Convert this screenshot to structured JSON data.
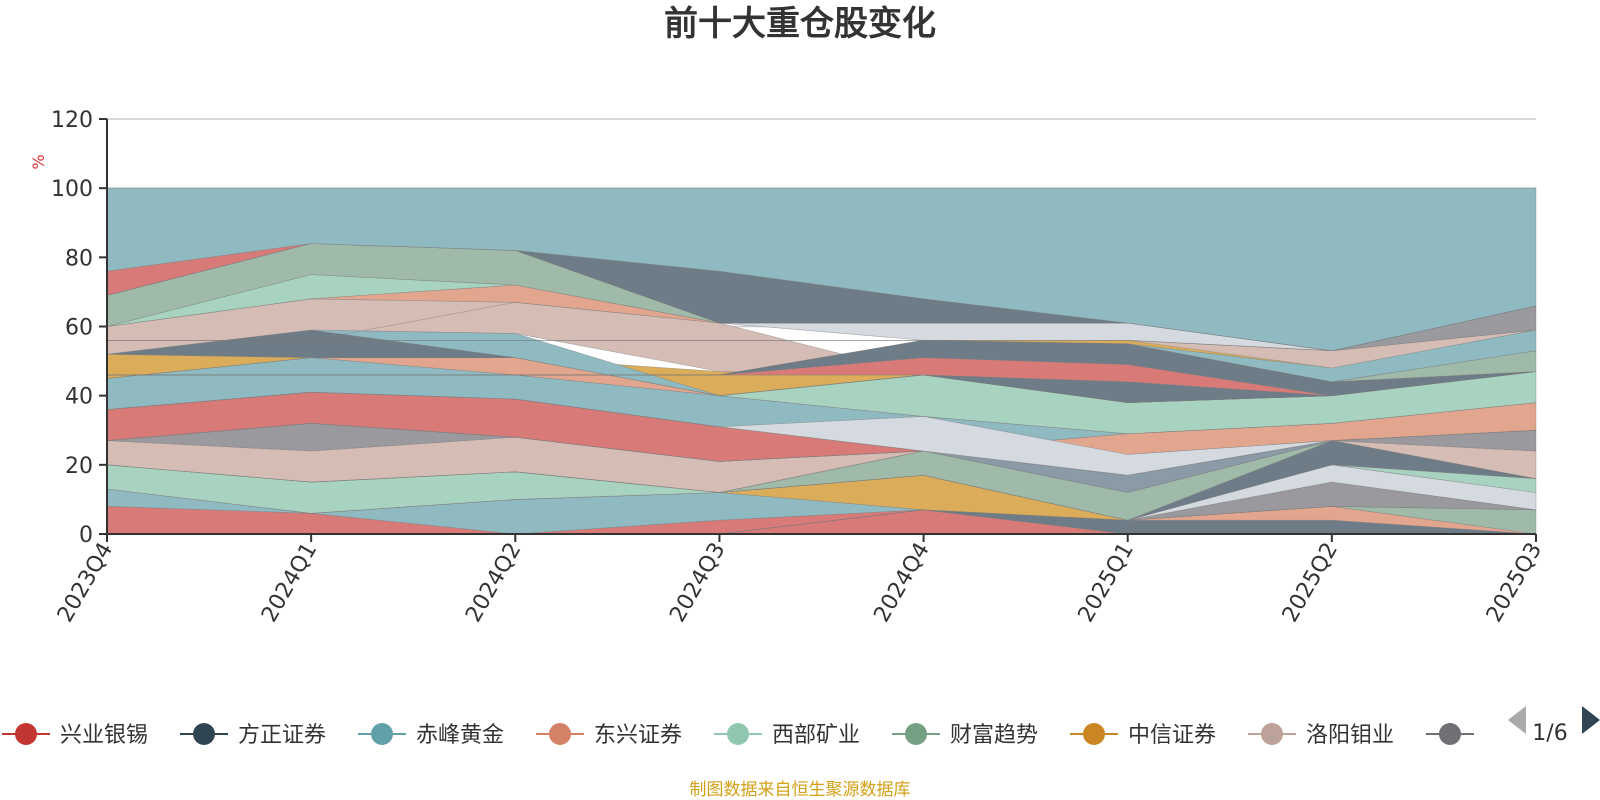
{
  "source_note": "制图数据来自恒生聚源数据库",
  "legend_page": "1/6",
  "chart_data": {
    "type": "area",
    "title": "前十大重仓股变化",
    "ylabel": "%",
    "ylim": [
      0,
      120
    ],
    "yticks": [
      0,
      20,
      40,
      60,
      80,
      100,
      120
    ],
    "grid": true,
    "legend_position": "bottom",
    "categories": [
      "2023Q4",
      "2024Q1",
      "2024Q2",
      "2024Q3",
      "2024Q4",
      "2025Q1",
      "2025Q2",
      "2025Q3"
    ],
    "legend": [
      {
        "name": "兴业银锡",
        "color": "#c23531"
      },
      {
        "name": "方正证券",
        "color": "#2f4554"
      },
      {
        "name": "赤峰黄金",
        "color": "#61a0a8"
      },
      {
        "name": "东兴证券",
        "color": "#d48265"
      },
      {
        "name": "西部矿业",
        "color": "#91c7ae"
      },
      {
        "name": "财富趋势",
        "color": "#749f83"
      },
      {
        "name": "中信证券",
        "color": "#ca8622"
      },
      {
        "name": "洛阳钼业",
        "color": "#bda29a"
      },
      {
        "name": "",
        "color": "#6e7074"
      }
    ],
    "bands": [
      {
        "color": "#d87a78",
        "lower": [
          0,
          0,
          0,
          0,
          0,
          0,
          0,
          0
        ],
        "upper": [
          8,
          6,
          0,
          4,
          7,
          0,
          0,
          0
        ]
      },
      {
        "color": "#8fbac2",
        "lower": [
          8,
          6,
          0,
          4,
          7,
          0,
          0,
          0
        ],
        "upper": [
          13,
          6,
          10,
          12,
          7,
          0,
          0,
          0
        ]
      },
      {
        "color": "#6e7c87",
        "lower": [
          0,
          0,
          0,
          0,
          7,
          0,
          0,
          0
        ],
        "upper": [
          0,
          0,
          0,
          0,
          7,
          4,
          4,
          0
        ]
      },
      {
        "color": "#e2a68f",
        "lower": [
          0,
          0,
          0,
          0,
          7,
          4,
          4,
          0
        ],
        "upper": [
          0,
          0,
          0,
          0,
          7,
          4,
          8,
          0
        ]
      },
      {
        "color": "#9fbaa8",
        "lower": [
          0,
          0,
          0,
          0,
          7,
          4,
          8,
          0
        ],
        "upper": [
          0,
          0,
          0,
          0,
          7,
          4,
          8,
          7
        ]
      },
      {
        "color": "#dbad5a",
        "lower": [
          13,
          6,
          10,
          12,
          7,
          4,
          8,
          7
        ],
        "upper": [
          13,
          6,
          10,
          12,
          17,
          4,
          8,
          7
        ]
      },
      {
        "color": "#9a9a9e",
        "lower": [
          13,
          6,
          10,
          12,
          17,
          4,
          8,
          7
        ],
        "upper": [
          13,
          6,
          10,
          12,
          17,
          4,
          15,
          7
        ]
      },
      {
        "color": "#d5d9e0",
        "lower": [
          13,
          6,
          10,
          12,
          17,
          4,
          15,
          7
        ],
        "upper": [
          13,
          6,
          10,
          12,
          17,
          4,
          20,
          12
        ]
      },
      {
        "color": "#a9d3c1",
        "lower": [
          13,
          6,
          10,
          12,
          17,
          4,
          20,
          12
        ],
        "upper": [
          20,
          15,
          18,
          12,
          17,
          4,
          20,
          16
        ]
      },
      {
        "color": "#6e7c87",
        "lower": [
          20,
          15,
          18,
          12,
          17,
          4,
          20,
          16
        ],
        "upper": [
          20,
          15,
          18,
          12,
          17,
          4,
          27,
          16
        ]
      },
      {
        "color": "#9fbaa8",
        "lower": [
          20,
          15,
          18,
          12,
          17,
          4,
          27,
          16
        ],
        "upper": [
          20,
          15,
          18,
          12,
          24,
          12,
          27,
          16
        ]
      },
      {
        "color": "#d5bdb6",
        "lower": [
          20,
          15,
          18,
          12,
          24,
          12,
          27,
          16
        ],
        "upper": [
          27,
          24,
          28,
          21,
          24,
          12,
          27,
          24
        ]
      },
      {
        "color": "#8a9aa6",
        "lower": [
          20,
          15,
          18,
          12,
          24,
          12,
          27,
          16
        ],
        "upper": [
          20,
          15,
          18,
          12,
          24,
          17,
          27,
          16
        ]
      },
      {
        "color": "#9a9a9e",
        "lower": [
          27,
          24,
          28,
          21,
          24,
          17,
          27,
          24
        ],
        "upper": [
          27,
          32,
          28,
          21,
          24,
          17,
          27,
          30
        ]
      },
      {
        "color": "#d87a78",
        "lower": [
          27,
          32,
          28,
          21,
          24,
          17,
          27,
          30
        ],
        "upper": [
          36,
          41,
          39,
          31,
          24,
          23,
          27,
          30
        ]
      },
      {
        "color": "#e2a68f",
        "lower": [
          27,
          32,
          28,
          21,
          24,
          23,
          27,
          30
        ],
        "upper": [
          27,
          32,
          28,
          21,
          24,
          29,
          32,
          38
        ]
      },
      {
        "color": "#8fbac2",
        "lower": [
          36,
          41,
          39,
          31,
          24,
          29,
          32,
          38
        ],
        "upper": [
          45,
          51,
          46,
          40,
          34,
          29,
          32,
          38
        ]
      },
      {
        "color": "#d5d9e0",
        "lower": [
          36,
          41,
          39,
          31,
          24,
          17,
          27,
          30
        ],
        "upper": [
          36,
          41,
          39,
          31,
          34,
          23,
          27,
          30
        ]
      },
      {
        "color": "#e2a68f",
        "lower": [
          45,
          51,
          46,
          40,
          34,
          29,
          32,
          38
        ],
        "upper": [
          45,
          51,
          51,
          40,
          34,
          29,
          32,
          38
        ]
      },
      {
        "color": "#a9d3c1",
        "lower": [
          45,
          51,
          51,
          40,
          34,
          29,
          32,
          38
        ],
        "upper": [
          45,
          51,
          51,
          40,
          46,
          38,
          40,
          47
        ]
      },
      {
        "color": "#dbad5a",
        "lower": [
          45,
          51,
          51,
          40,
          46,
          38,
          40,
          47
        ],
        "upper": [
          52,
          51,
          51,
          47,
          46,
          38,
          40,
          47
        ]
      },
      {
        "color": "#6e7c87",
        "lower": [
          52,
          51,
          51,
          40,
          46,
          38,
          40,
          47
        ],
        "upper": [
          52,
          59,
          51,
          40,
          46,
          38,
          40,
          47
        ]
      },
      {
        "color": "#8fbac2",
        "lower": [
          52,
          59,
          51,
          40,
          46,
          38,
          40,
          47
        ],
        "upper": [
          52,
          59,
          58,
          40,
          46,
          38,
          40,
          47
        ]
      },
      {
        "color": "#d5bdb6",
        "lower": [
          52,
          59,
          58,
          47,
          46,
          38,
          40,
          47
        ],
        "upper": [
          60,
          68,
          67,
          61,
          46,
          38,
          40,
          47
        ]
      },
      {
        "color": "#6e7c87",
        "lower": [
          46,
          46,
          46,
          46,
          46,
          38,
          40,
          47
        ],
        "upper": [
          46,
          46,
          46,
          46,
          46,
          44,
          40,
          47
        ]
      },
      {
        "color": "#d87a78",
        "lower": [
          46,
          46,
          46,
          46,
          46,
          44,
          40,
          47
        ],
        "upper": [
          46,
          46,
          46,
          46,
          51,
          49,
          40,
          47
        ]
      },
      {
        "color": "#6e7c87",
        "lower": [
          46,
          46,
          46,
          46,
          51,
          49,
          40,
          47
        ],
        "upper": [
          46,
          46,
          46,
          46,
          56,
          55,
          44,
          47
        ]
      },
      {
        "color": "#9fbaa8",
        "lower": [
          46,
          46,
          46,
          46,
          56,
          55,
          44,
          47
        ],
        "upper": [
          46,
          46,
          46,
          46,
          56,
          55,
          44,
          53
        ]
      },
      {
        "color": "#dbad5a",
        "lower": [
          46,
          46,
          46,
          46,
          56,
          55,
          44,
          53
        ],
        "upper": [
          46,
          46,
          46,
          46,
          56,
          61,
          48,
          53
        ]
      },
      {
        "color": "#8fbac2",
        "lower": [
          56,
          56,
          56,
          56,
          56,
          55,
          44,
          53
        ],
        "upper": [
          56,
          56,
          56,
          56,
          56,
          55,
          48,
          59
        ]
      },
      {
        "color": "#d5bdb6",
        "lower": [
          56,
          56,
          56,
          56,
          56,
          56,
          48,
          59
        ],
        "upper": [
          56,
          56,
          56,
          56,
          56,
          56,
          53,
          59
        ]
      },
      {
        "color": "#d5d9e0",
        "lower": [
          56,
          56,
          67,
          61,
          56,
          56,
          53,
          59
        ],
        "upper": [
          56,
          56,
          67,
          65,
          61,
          61,
          53,
          59
        ]
      },
      {
        "color": "#9a9a9e",
        "lower": [
          56,
          56,
          56,
          56,
          56,
          56,
          53,
          59
        ],
        "upper": [
          56,
          56,
          56,
          56,
          56,
          56,
          53,
          66
        ]
      },
      {
        "color": "#e2a68f",
        "lower": [
          60,
          68,
          67,
          61,
          61,
          61,
          53,
          66
        ],
        "upper": [
          60,
          68,
          72,
          61,
          61,
          61,
          53,
          66
        ]
      },
      {
        "color": "#a9d3c1",
        "lower": [
          60,
          68,
          72,
          61,
          61,
          61,
          53,
          66
        ],
        "upper": [
          60,
          75,
          72,
          61,
          61,
          61,
          53,
          66
        ]
      },
      {
        "color": "#9fbaa8",
        "lower": [
          60,
          75,
          72,
          61,
          61,
          61,
          53,
          66
        ],
        "upper": [
          69,
          84,
          82,
          61,
          61,
          61,
          53,
          66
        ]
      },
      {
        "color": "#d87a78",
        "lower": [
          69,
          84,
          82,
          61,
          61,
          61,
          53,
          66
        ],
        "upper": [
          76,
          84,
          82,
          61,
          61,
          61,
          53,
          66
        ]
      },
      {
        "color": "#6e7c87",
        "lower": [
          69,
          84,
          82,
          61,
          61,
          61,
          53,
          66
        ],
        "upper": [
          69,
          84,
          82,
          76,
          68,
          61,
          53,
          66
        ]
      },
      {
        "color": "#8fbac2",
        "lower": [
          76,
          84,
          82,
          76,
          68,
          61,
          53,
          66
        ],
        "upper": [
          100,
          100,
          100,
          100,
          100,
          100,
          100,
          100
        ]
      }
    ]
  }
}
